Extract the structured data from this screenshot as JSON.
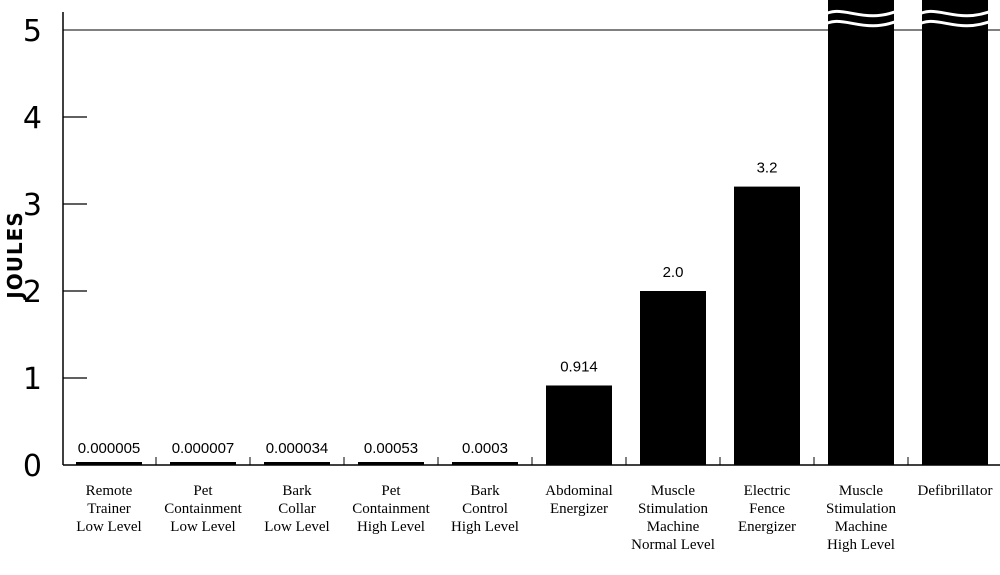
{
  "chart_data": {
    "type": "bar",
    "ylabel": "JOULES",
    "xlabel": "",
    "ylim": [
      0,
      5
    ],
    "yticks": [
      "0",
      "1",
      "2",
      "3",
      "4",
      "5"
    ],
    "colors": {
      "bar": "#000000",
      "axis": "#000000",
      "background": "#ffffff"
    },
    "categories": [
      [
        "Remote",
        "Trainer",
        "Low Level"
      ],
      [
        "Pet",
        "Containment",
        "Low Level"
      ],
      [
        "Bark",
        "Collar",
        "Low Level"
      ],
      [
        "Pet",
        "Containment",
        "High Level"
      ],
      [
        "Bark",
        "Control",
        "High Level"
      ],
      [
        "Abdominal",
        "Energizer"
      ],
      [
        "Muscle",
        "Stimulation",
        "Machine",
        "Normal Level"
      ],
      [
        "Electric",
        "Fence",
        "Energizer"
      ],
      [
        "Muscle",
        "Stimulation",
        "Machine",
        "High Level"
      ],
      [
        "Defibrillator"
      ]
    ],
    "values": [
      5e-06,
      7e-06,
      3.4e-05,
      0.00053,
      0.0003,
      0.914,
      2.0,
      3.2,
      5.0,
      5.0
    ],
    "value_labels": [
      "0.000005",
      "0.000007",
      "0.000034",
      "0.00053",
      "0.0003",
      "0.914",
      "2.0",
      "3.2",
      "",
      ""
    ],
    "truncated": [
      false,
      false,
      false,
      false,
      false,
      false,
      false,
      false,
      true,
      true
    ]
  }
}
